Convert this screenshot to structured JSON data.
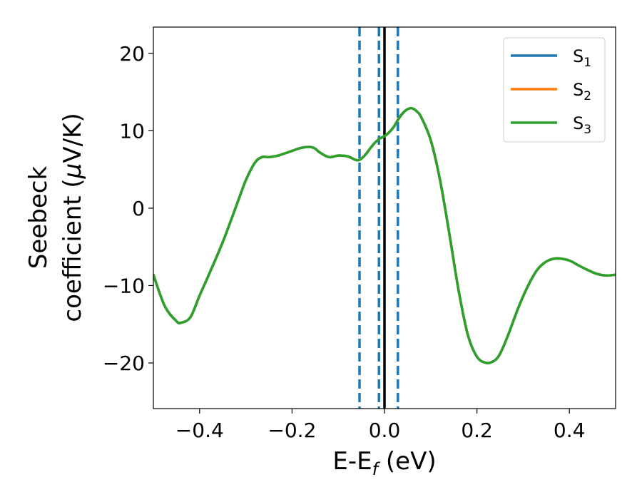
{
  "chart_data": {
    "type": "line",
    "xlabel_main": "E-E",
    "xlabel_sub": "f",
    "xlabel_unit": " (eV)",
    "ylabel_line1": "Seebeck",
    "ylabel_line2_pre": "coefficient  (",
    "ylabel_mu": "μ",
    "ylabel_line2_post": "V/K)",
    "xlim": [
      -0.5,
      0.5
    ],
    "ylim": [
      -25.9,
      23.4
    ],
    "x_ticks": [
      -0.4,
      -0.2,
      0.0,
      0.2,
      0.4
    ],
    "x_tick_labels": [
      "−0.4",
      "−0.2",
      "0.0",
      "0.2",
      "0.4"
    ],
    "y_ticks": [
      -20,
      -10,
      0,
      10,
      20
    ],
    "y_tick_labels": [
      "−20",
      "−10",
      "0",
      "10",
      "20"
    ],
    "grid": false,
    "legend_position": "top-right",
    "series": [
      {
        "name_base": "S",
        "name_sub": "1",
        "color": "#1f77b4",
        "x": [
          -0.5,
          -0.475,
          -0.45,
          -0.44,
          -0.42,
          -0.4,
          -0.38,
          -0.35,
          -0.32,
          -0.3,
          -0.28,
          -0.265,
          -0.25,
          -0.23,
          -0.2,
          -0.18,
          -0.16,
          -0.15,
          -0.14,
          -0.12,
          -0.1,
          -0.08,
          -0.06,
          -0.05,
          -0.04,
          -0.03,
          -0.02,
          -0.01,
          0.0,
          0.01,
          0.02,
          0.03,
          0.04,
          0.05,
          0.06,
          0.07,
          0.08,
          0.1,
          0.12,
          0.14,
          0.16,
          0.18,
          0.2,
          0.22,
          0.235,
          0.245,
          0.255,
          0.27,
          0.29,
          0.31,
          0.33,
          0.35,
          0.37,
          0.39,
          0.405,
          0.42,
          0.44,
          0.46,
          0.48,
          0.5
        ],
        "values": [
          -8.6,
          -12.7,
          -14.6,
          -14.8,
          -14.1,
          -11.3,
          -8.6,
          -4.4,
          0.4,
          3.6,
          5.9,
          6.6,
          6.6,
          6.8,
          7.4,
          7.8,
          7.9,
          7.7,
          7.2,
          6.6,
          6.8,
          6.7,
          6.2,
          6.4,
          7.0,
          7.8,
          8.5,
          9.0,
          9.3,
          9.8,
          10.5,
          11.5,
          12.3,
          12.8,
          12.9,
          12.5,
          11.7,
          8.8,
          3.7,
          -3.2,
          -10.5,
          -16.3,
          -19.2,
          -20.0,
          -19.8,
          -19.3,
          -18.2,
          -16.0,
          -12.8,
          -10.1,
          -8.0,
          -6.9,
          -6.5,
          -6.6,
          -6.9,
          -7.4,
          -8.0,
          -8.5,
          -8.7,
          -8.6
        ]
      },
      {
        "name_base": "S",
        "name_sub": "2",
        "color": "#ff7f0e",
        "x": [
          -0.5,
          -0.475,
          -0.45,
          -0.44,
          -0.42,
          -0.4,
          -0.38,
          -0.35,
          -0.32,
          -0.3,
          -0.28,
          -0.265,
          -0.25,
          -0.23,
          -0.2,
          -0.18,
          -0.16,
          -0.15,
          -0.14,
          -0.12,
          -0.1,
          -0.08,
          -0.06,
          -0.05,
          -0.04,
          -0.03,
          -0.02,
          -0.01,
          0.0,
          0.01,
          0.02,
          0.03,
          0.04,
          0.05,
          0.06,
          0.07,
          0.08,
          0.1,
          0.12,
          0.14,
          0.16,
          0.18,
          0.2,
          0.22,
          0.235,
          0.245,
          0.255,
          0.27,
          0.29,
          0.31,
          0.33,
          0.35,
          0.37,
          0.39,
          0.405,
          0.42,
          0.44,
          0.46,
          0.48,
          0.5
        ],
        "values": [
          -8.6,
          -12.7,
          -14.6,
          -14.8,
          -14.1,
          -11.3,
          -8.6,
          -4.4,
          0.4,
          3.6,
          5.9,
          6.6,
          6.6,
          6.8,
          7.4,
          7.8,
          7.9,
          7.7,
          7.2,
          6.6,
          6.8,
          6.7,
          6.2,
          6.4,
          7.0,
          7.8,
          8.5,
          9.0,
          9.3,
          9.8,
          10.5,
          11.5,
          12.3,
          12.8,
          12.9,
          12.5,
          11.7,
          8.8,
          3.7,
          -3.2,
          -10.5,
          -16.3,
          -19.2,
          -20.0,
          -19.8,
          -19.3,
          -18.2,
          -16.0,
          -12.8,
          -10.1,
          -8.0,
          -6.9,
          -6.5,
          -6.6,
          -6.9,
          -7.4,
          -8.0,
          -8.5,
          -8.7,
          -8.6
        ]
      },
      {
        "name_base": "S",
        "name_sub": "3",
        "color": "#2ca02c",
        "x": [
          -0.5,
          -0.475,
          -0.45,
          -0.44,
          -0.42,
          -0.4,
          -0.38,
          -0.35,
          -0.32,
          -0.3,
          -0.28,
          -0.265,
          -0.25,
          -0.23,
          -0.2,
          -0.18,
          -0.16,
          -0.15,
          -0.14,
          -0.12,
          -0.1,
          -0.08,
          -0.06,
          -0.05,
          -0.04,
          -0.03,
          -0.02,
          -0.01,
          0.0,
          0.01,
          0.02,
          0.03,
          0.04,
          0.05,
          0.06,
          0.07,
          0.08,
          0.1,
          0.12,
          0.14,
          0.16,
          0.18,
          0.2,
          0.22,
          0.235,
          0.245,
          0.255,
          0.27,
          0.29,
          0.31,
          0.33,
          0.35,
          0.37,
          0.39,
          0.405,
          0.42,
          0.44,
          0.46,
          0.48,
          0.5
        ],
        "values": [
          -8.6,
          -12.7,
          -14.6,
          -14.8,
          -14.1,
          -11.3,
          -8.6,
          -4.4,
          0.4,
          3.6,
          5.9,
          6.6,
          6.6,
          6.8,
          7.4,
          7.8,
          7.9,
          7.7,
          7.2,
          6.6,
          6.8,
          6.7,
          6.2,
          6.4,
          7.0,
          7.8,
          8.5,
          9.0,
          9.3,
          9.8,
          10.5,
          11.5,
          12.3,
          12.8,
          12.9,
          12.5,
          11.7,
          8.8,
          3.7,
          -3.2,
          -10.5,
          -16.3,
          -19.2,
          -20.0,
          -19.8,
          -19.3,
          -18.2,
          -16.0,
          -12.8,
          -10.1,
          -8.0,
          -6.9,
          -6.5,
          -6.6,
          -6.9,
          -7.4,
          -8.0,
          -8.5,
          -8.7,
          -8.6
        ]
      }
    ],
    "vertical_lines": [
      {
        "x": -0.054,
        "style": "dashed",
        "color": "#1f77b4"
      },
      {
        "x": -0.012,
        "style": "dashed",
        "color": "#1f77b4"
      },
      {
        "x": 0.0,
        "style": "solid",
        "color": "#000000"
      },
      {
        "x": 0.029,
        "style": "dashed",
        "color": "#1f77b4"
      }
    ]
  }
}
